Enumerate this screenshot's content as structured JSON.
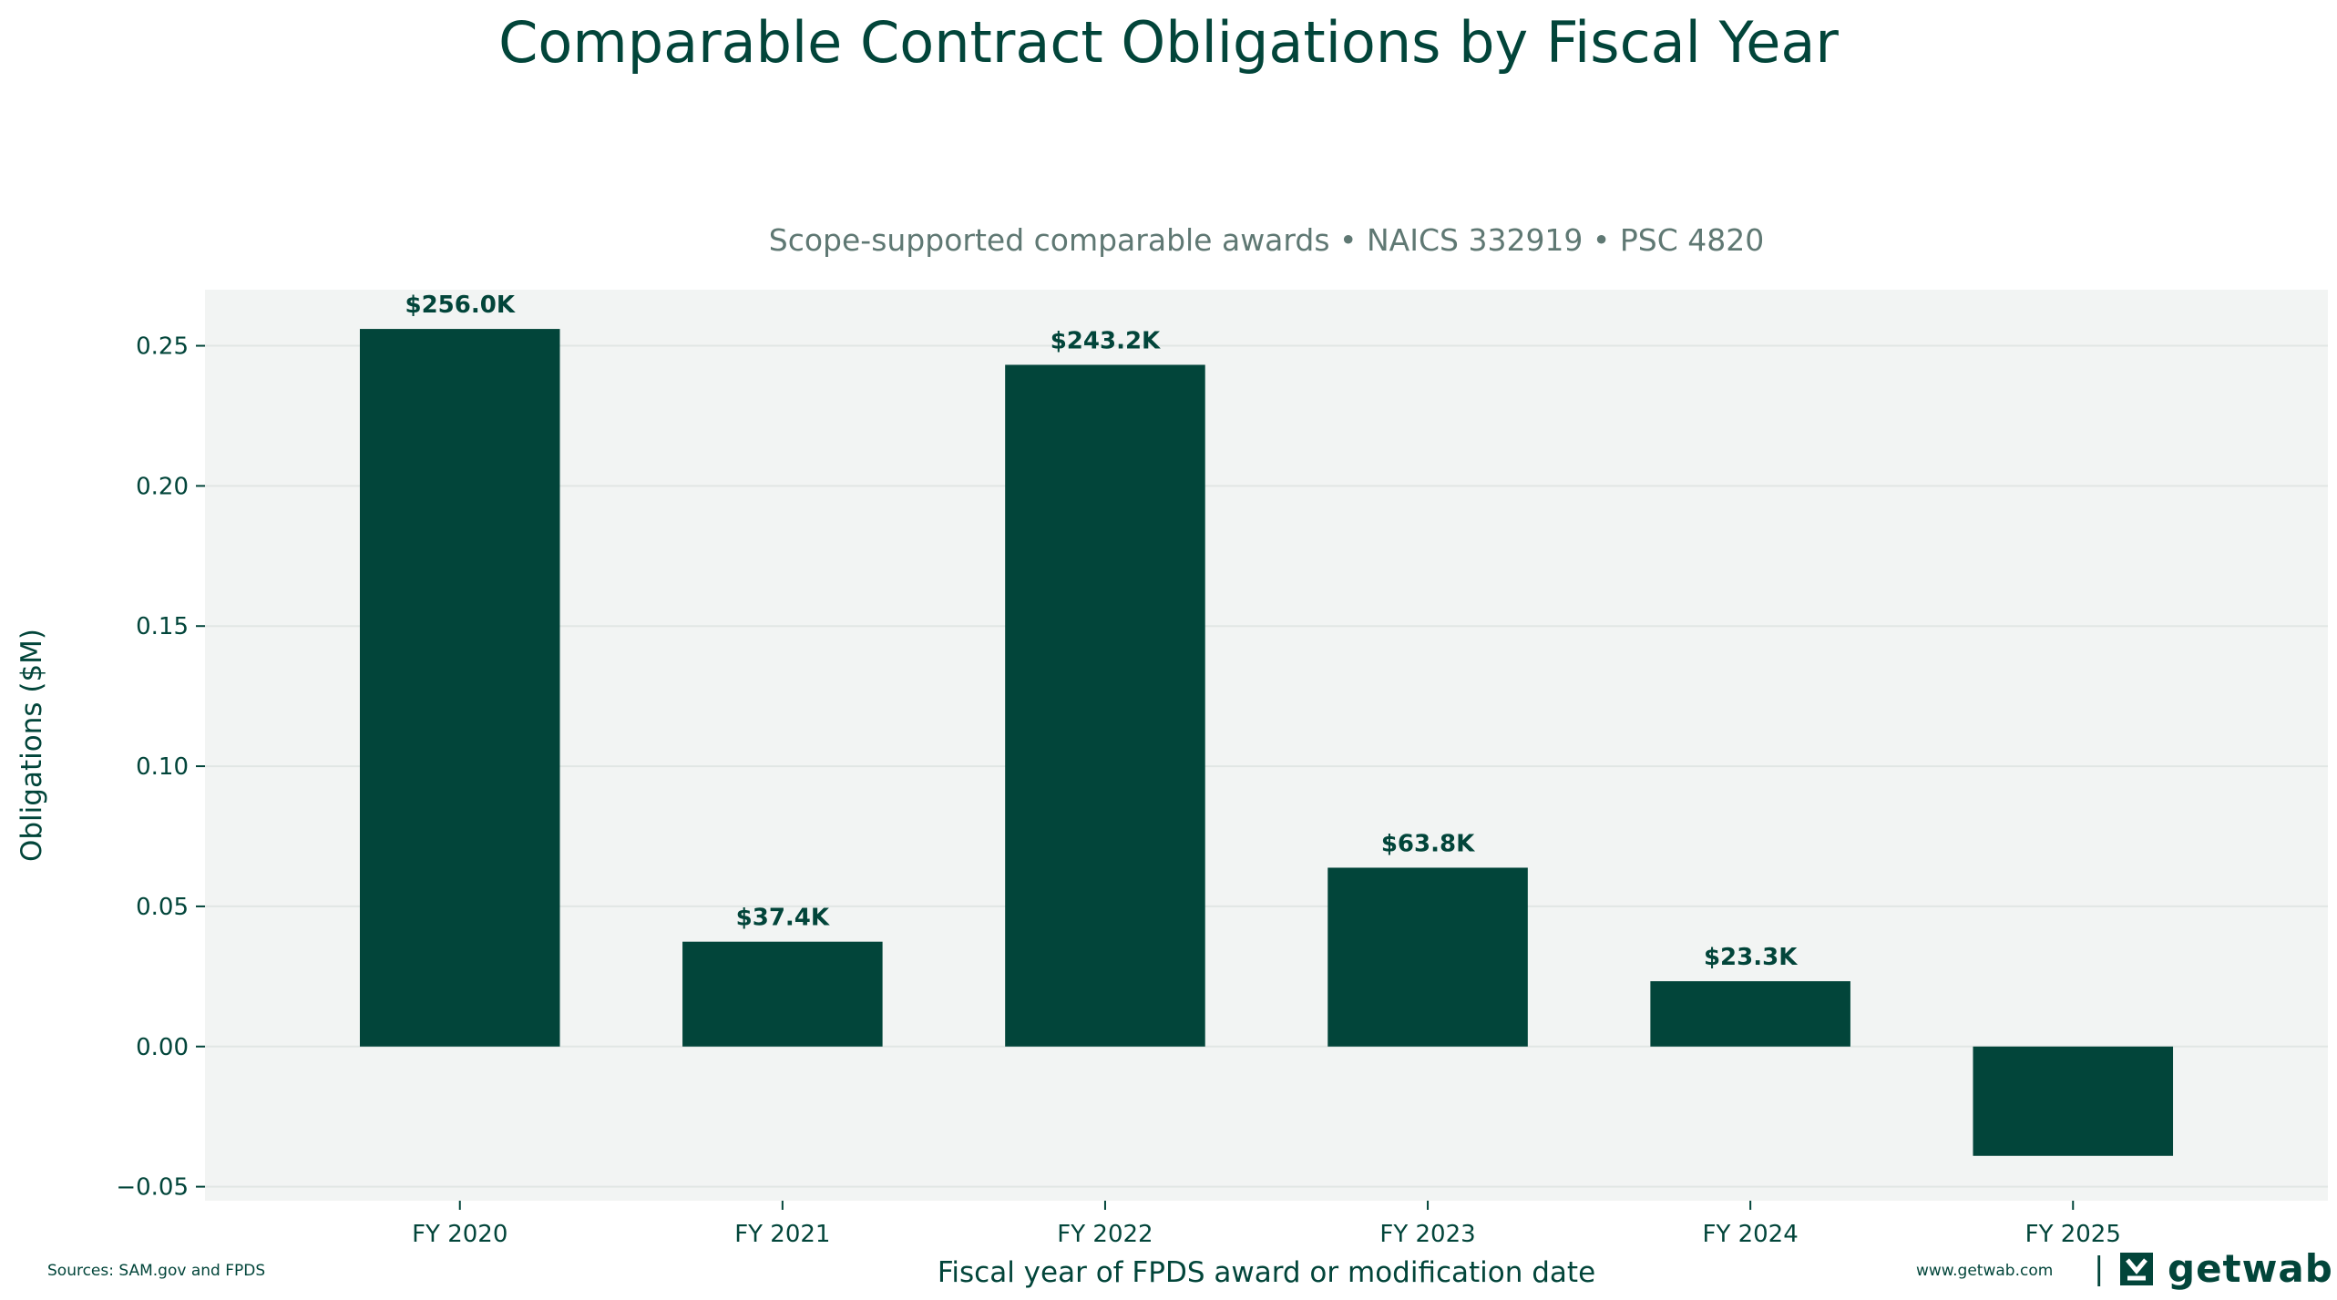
{
  "chart_data": {
    "type": "bar",
    "title": "Comparable Contract Obligations by Fiscal Year",
    "subtitle": "Scope-supported comparable awards • NAICS 332919 • PSC 4820",
    "xlabel": "Fiscal year of FPDS award or modification date",
    "ylabel": "Obligations ($M)",
    "categories": [
      "FY 2020",
      "FY 2021",
      "FY 2022",
      "FY 2023",
      "FY 2024",
      "FY 2025"
    ],
    "values": [
      0.256,
      0.0374,
      0.2432,
      0.0638,
      0.0233,
      -0.039
    ],
    "data_labels": [
      "$256.0K",
      "$37.4K",
      "$243.2K",
      "$63.8K",
      "$23.3K",
      ""
    ],
    "ylim": [
      -0.055,
      0.27
    ],
    "yticks": [
      -0.05,
      0.0,
      0.05,
      0.1,
      0.15,
      0.2,
      0.25
    ],
    "ytick_labels": [
      "−0.05",
      "0.00",
      "0.05",
      "0.10",
      "0.15",
      "0.20",
      "0.25"
    ],
    "grid": true,
    "colors": {
      "bar": "#02453a",
      "plot_bg": "#f2f4f3",
      "grid": "#e1e6e4",
      "subtitle": "#5f7873"
    }
  },
  "footer": {
    "sources": "Sources: SAM.gov and FPDS",
    "website": "www.getwab.com",
    "separator": "|",
    "brand": "getwab",
    "brand_icon": "getwab-logo-icon"
  }
}
